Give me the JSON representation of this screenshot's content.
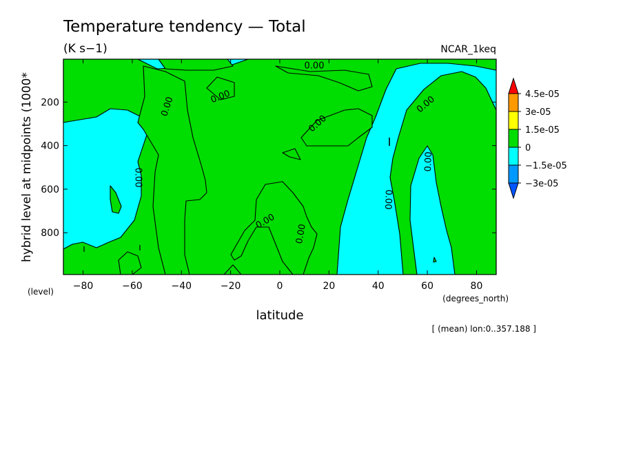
{
  "chart_data": {
    "type": "heatmap",
    "title": "Temperature tendency — Total",
    "subtitle": "(K s−1)",
    "dataset_label": "NCAR_1keq",
    "xlabel": "latitude",
    "x_units": "(degrees_north)",
    "ylabel": "hybrid level at midpoints (1000*",
    "y_units": "(level)",
    "footer_note": "[ (mean) lon:0..357.188 ]",
    "xlim": [
      -88,
      88
    ],
    "ylim": [
      992,
      3
    ],
    "x_ticks": [
      -80,
      -60,
      -40,
      -20,
      0,
      20,
      40,
      60,
      80
    ],
    "x_tick_labels": [
      "−80",
      "−60",
      "−40",
      "−20",
      "0",
      "20",
      "40",
      "60",
      "80"
    ],
    "y_ticks": [
      200,
      400,
      600,
      800
    ],
    "y_tick_labels": [
      "200",
      "400",
      "600",
      "800"
    ],
    "contour_label": "0.00",
    "colorbar": {
      "labels": [
        "4.5e-05",
        "3e-05",
        "1.5e-05",
        "0",
        "−1.5e-05",
        "−3e-05"
      ],
      "colors": [
        "#ff0000",
        "#ff9900",
        "#ffff00",
        "#00dd00",
        "#00ffff",
        "#0099ff",
        "#0055ff"
      ]
    },
    "regions": {
      "positive_color": "#00dd00",
      "negative_color": "#00ffff"
    }
  }
}
